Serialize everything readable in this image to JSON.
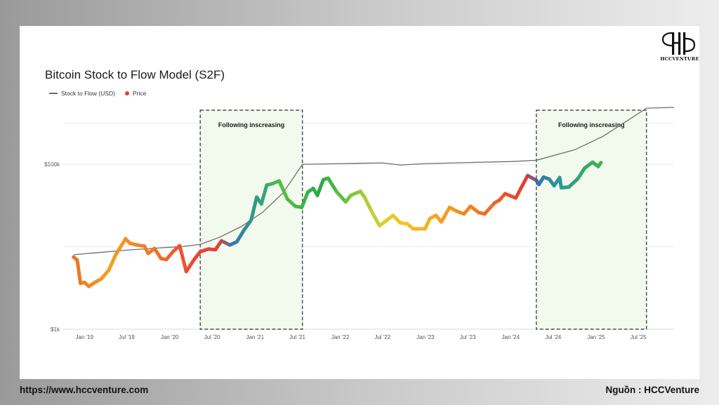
{
  "footer": {
    "website": "https://www.hccventure.com",
    "source": "Nguồn : HCCVenture"
  },
  "logo": {
    "text": "HCCVENTURE"
  },
  "chart_data": {
    "type": "line",
    "title": "Bitcoin Stock to Flow Model (S2F)",
    "legend_position": "top-left",
    "grid": true,
    "y_scale": "log",
    "ylim": [
      1000,
      500000
    ],
    "xlim": [
      "2018-11-01",
      "2025-12-01"
    ],
    "y_ticks": [
      {
        "value": 1000,
        "label": "$1k"
      },
      {
        "value": 100000,
        "label": "$100k"
      }
    ],
    "x_ticks": [
      {
        "date": "2019-01-01",
        "label": "Jan '19"
      },
      {
        "date": "2019-07-01",
        "label": "Jul '19"
      },
      {
        "date": "2020-01-01",
        "label": "Jan '20"
      },
      {
        "date": "2020-07-01",
        "label": "Jul '20"
      },
      {
        "date": "2021-01-01",
        "label": "Jan '21"
      },
      {
        "date": "2021-07-01",
        "label": "Jul '21"
      },
      {
        "date": "2022-01-01",
        "label": "Jan '22"
      },
      {
        "date": "2022-07-01",
        "label": "Jul '22"
      },
      {
        "date": "2023-01-01",
        "label": "Jan '23"
      },
      {
        "date": "2023-07-01",
        "label": "Jul '23"
      },
      {
        "date": "2024-01-01",
        "label": "Jan '24"
      },
      {
        "date": "2024-07-01",
        "label": "Jul '24"
      },
      {
        "date": "2025-01-01",
        "label": "Jan '25"
      },
      {
        "date": "2025-07-01",
        "label": "Jul '25"
      }
    ],
    "annotations": [
      {
        "label": "Following inscreasing",
        "x_start": "2020-05-11",
        "x_end": "2021-07-23"
      },
      {
        "label": "Following inscreasing",
        "x_start": "2024-04-20",
        "x_end": "2025-08-05"
      }
    ],
    "series": [
      {
        "name": "Stock to Flow (USD)",
        "color": "#6e6e6e",
        "points": [
          [
            "2018-11-15",
            8000
          ],
          [
            "2019-03-01",
            8500
          ],
          [
            "2019-07-01",
            9100
          ],
          [
            "2019-11-01",
            9600
          ],
          [
            "2020-03-01",
            10100
          ],
          [
            "2020-05-11",
            10700
          ],
          [
            "2020-08-01",
            13000
          ],
          [
            "2020-11-01",
            17500
          ],
          [
            "2021-02-01",
            26000
          ],
          [
            "2021-05-01",
            45000
          ],
          [
            "2021-07-23",
            100000
          ],
          [
            "2022-01-01",
            102000
          ],
          [
            "2022-07-01",
            104000
          ],
          [
            "2022-09-15",
            98000
          ],
          [
            "2023-01-01",
            102000
          ],
          [
            "2023-07-01",
            105000
          ],
          [
            "2024-01-01",
            108000
          ],
          [
            "2024-04-20",
            112000
          ],
          [
            "2024-10-01",
            150000
          ],
          [
            "2025-02-01",
            220000
          ],
          [
            "2025-05-01",
            320000
          ],
          [
            "2025-08-05",
            480000
          ],
          [
            "2025-12-01",
            490000
          ]
        ]
      },
      {
        "name": "Price",
        "color": "#e8403a",
        "points": [
          [
            "2018-11-15",
            7500
          ],
          [
            "2018-12-01",
            6900
          ],
          [
            "2018-12-15",
            3600
          ],
          [
            "2019-01-01",
            3700
          ],
          [
            "2019-01-20",
            3300
          ],
          [
            "2019-02-15",
            3700
          ],
          [
            "2019-03-15",
            4100
          ],
          [
            "2019-04-15",
            5200
          ],
          [
            "2019-05-15",
            8000
          ],
          [
            "2019-06-26",
            12500
          ],
          [
            "2019-07-15",
            11000
          ],
          [
            "2019-08-15",
            10500
          ],
          [
            "2019-09-15",
            10200
          ],
          [
            "2019-10-01",
            8300
          ],
          [
            "2019-10-28",
            9500
          ],
          [
            "2019-11-25",
            7200
          ],
          [
            "2019-12-18",
            7000
          ],
          [
            "2020-01-15",
            8700
          ],
          [
            "2020-02-13",
            10300
          ],
          [
            "2020-03-12",
            5000
          ],
          [
            "2020-04-15",
            7000
          ],
          [
            "2020-05-11",
            8700
          ],
          [
            "2020-06-15",
            9400
          ],
          [
            "2020-07-15",
            9200
          ],
          [
            "2020-08-10",
            11800
          ],
          [
            "2020-09-15",
            10500
          ],
          [
            "2020-10-15",
            11500
          ],
          [
            "2020-11-15",
            16000
          ],
          [
            "2020-12-15",
            21000
          ],
          [
            "2021-01-08",
            40000
          ],
          [
            "2021-01-28",
            33000
          ],
          [
            "2021-02-20",
            56000
          ],
          [
            "2021-03-15",
            58000
          ],
          [
            "2021-04-14",
            63000
          ],
          [
            "2021-05-19",
            38000
          ],
          [
            "2021-06-22",
            31000
          ],
          [
            "2021-07-20",
            30000
          ],
          [
            "2021-08-15",
            46000
          ],
          [
            "2021-09-07",
            51000
          ],
          [
            "2021-09-25",
            42000
          ],
          [
            "2021-10-20",
            65000
          ],
          [
            "2021-11-10",
            68000
          ],
          [
            "2021-12-15",
            47000
          ],
          [
            "2022-01-24",
            35000
          ],
          [
            "2022-02-15",
            42000
          ],
          [
            "2022-03-28",
            47000
          ],
          [
            "2022-04-15",
            40000
          ],
          [
            "2022-05-12",
            28000
          ],
          [
            "2022-06-18",
            18000
          ],
          [
            "2022-07-15",
            20500
          ],
          [
            "2022-08-15",
            24000
          ],
          [
            "2022-09-15",
            19500
          ],
          [
            "2022-10-15",
            19000
          ],
          [
            "2022-11-09",
            16500
          ],
          [
            "2022-12-30",
            16500
          ],
          [
            "2023-01-20",
            22000
          ],
          [
            "2023-02-15",
            24000
          ],
          [
            "2023-03-10",
            20000
          ],
          [
            "2023-04-14",
            30000
          ],
          [
            "2023-05-15",
            27000
          ],
          [
            "2023-06-15",
            25000
          ],
          [
            "2023-07-13",
            31000
          ],
          [
            "2023-08-17",
            26000
          ],
          [
            "2023-09-11",
            25000
          ],
          [
            "2023-10-24",
            34000
          ],
          [
            "2023-11-15",
            37000
          ],
          [
            "2023-12-08",
            44000
          ],
          [
            "2024-01-23",
            39000
          ],
          [
            "2024-02-15",
            52000
          ],
          [
            "2024-03-14",
            73000
          ],
          [
            "2024-04-20",
            64000
          ],
          [
            "2024-05-01",
            57000
          ],
          [
            "2024-05-21",
            70000
          ],
          [
            "2024-06-15",
            66000
          ],
          [
            "2024-07-05",
            55000
          ],
          [
            "2024-07-29",
            69000
          ],
          [
            "2024-08-05",
            52000
          ],
          [
            "2024-09-06",
            53000
          ],
          [
            "2024-10-15",
            67000
          ],
          [
            "2024-11-13",
            90000
          ],
          [
            "2024-12-17",
            106000
          ],
          [
            "2025-01-10",
            94000
          ],
          [
            "2025-01-22",
            105000
          ]
        ]
      }
    ]
  }
}
